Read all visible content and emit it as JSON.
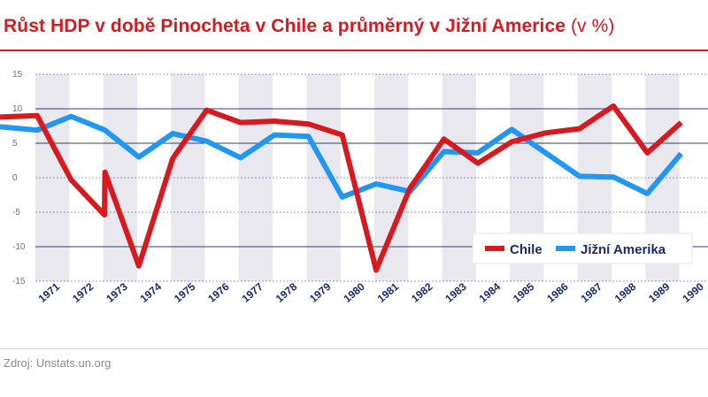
{
  "title": {
    "main": "Růst HDP v době Pinocheta v Chile a průměrný v Jižní Americe",
    "unit": " (v %)"
  },
  "source": "Zdroj: Unstats.un.org",
  "colors": {
    "chile": "#d71920",
    "south_america": "#2196f3",
    "band": "#e9e8ee",
    "grid": "#1b2a6b",
    "tick_text": "#1b2a6b"
  },
  "chart_data": {
    "type": "line",
    "x": [
      "1971",
      "1972",
      "1973",
      "1974",
      "1975",
      "1976",
      "1977",
      "1978",
      "1979",
      "1980",
      "1981",
      "1982",
      "1983",
      "1984",
      "1985",
      "1986",
      "1987",
      "1988",
      "1989",
      "1990"
    ],
    "series": [
      {
        "name": "Chile",
        "values": [
          9.0,
          -0.3,
          0.8,
          -12.8,
          2.8,
          9.8,
          8.0,
          8.2,
          7.8,
          6.2,
          -13.4,
          -1.5,
          5.6,
          2.1,
          5.2,
          6.5,
          7.1,
          10.4,
          3.6,
          8.0
        ],
        "start": 8.8,
        "dip_1972": -5.4
      },
      {
        "name": "Jižní Amerika",
        "values": [
          6.9,
          8.9,
          6.9,
          3.0,
          6.4,
          5.3,
          2.9,
          6.2,
          6.0,
          -2.8,
          -0.9,
          -2.0,
          3.8,
          3.6,
          7.0,
          3.6,
          0.2,
          0.1,
          -2.3,
          3.5
        ],
        "start": 7.4
      }
    ],
    "yticks": [
      15,
      10,
      5,
      0,
      -5,
      -10,
      -15
    ],
    "ylim": [
      -15,
      15
    ],
    "legend": "bottom-right",
    "xlabel": "",
    "ylabel": ""
  }
}
